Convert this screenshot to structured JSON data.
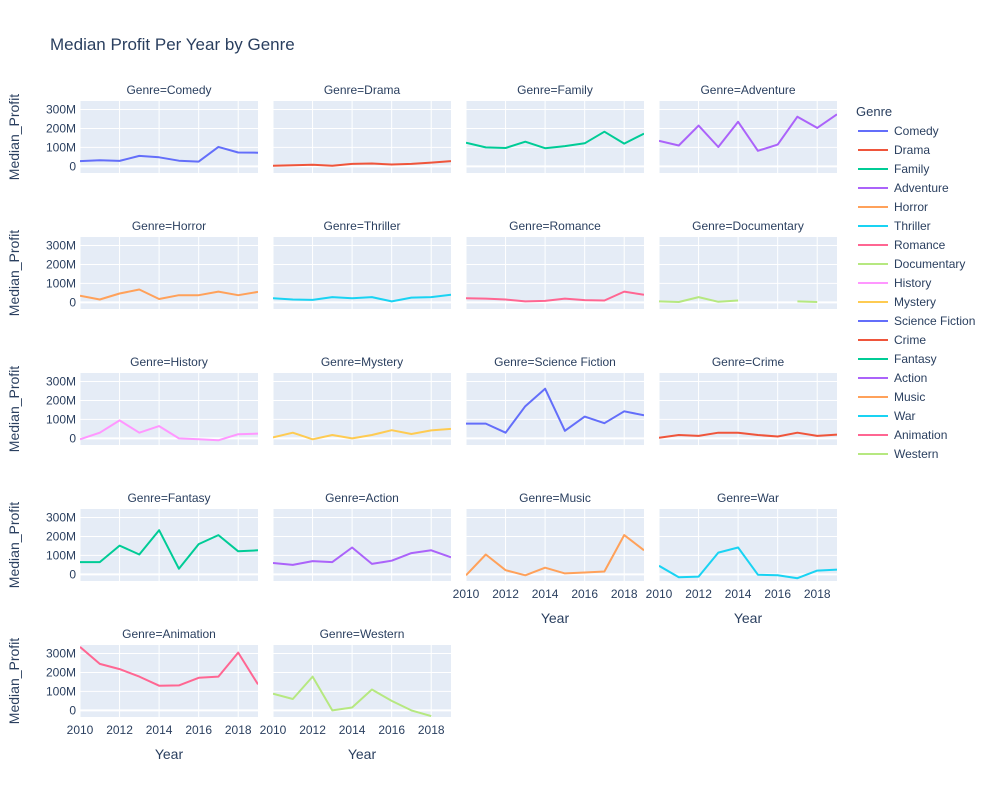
{
  "chart_data": {
    "type": "line",
    "title": "Median Profit Per Year by Genre",
    "xlabel": "Year",
    "ylabel": "Median_Profit",
    "facet_label_prefix": "Genre=",
    "legend_title": "Genre",
    "legend_placement": "right",
    "xlim": [
      2010,
      2019
    ],
    "ylim": [
      -35000000,
      345000000
    ],
    "x_ticks": [
      2010,
      2012,
      2014,
      2016,
      2018
    ],
    "x_tick_labels": [
      "2010",
      "2012",
      "2014",
      "2016",
      "2018"
    ],
    "y_ticks": [
      0,
      100000000,
      200000000,
      300000000
    ],
    "y_tick_labels": [
      "0",
      "100M",
      "200M",
      "300M"
    ],
    "x": [
      2010,
      2011,
      2012,
      2013,
      2014,
      2015,
      2016,
      2017,
      2018,
      2019
    ],
    "grid": true,
    "series": [
      {
        "name": "Comedy",
        "color": "#636efa",
        "values": [
          28000000,
          32000000,
          29000000,
          55000000,
          48000000,
          30000000,
          25000000,
          103000000,
          73000000,
          72000000
        ]
      },
      {
        "name": "Drama",
        "color": "#EF553B",
        "values": [
          3000000,
          6000000,
          9000000,
          3000000,
          13000000,
          15000000,
          10000000,
          13000000,
          20000000,
          28000000
        ]
      },
      {
        "name": "Family",
        "color": "#00cc96",
        "values": [
          125000000,
          100000000,
          97000000,
          130000000,
          96000000,
          107000000,
          122000000,
          183000000,
          120000000,
          173000000
        ]
      },
      {
        "name": "Adventure",
        "color": "#ab63fa",
        "values": [
          135000000,
          110000000,
          215000000,
          102000000,
          235000000,
          82000000,
          115000000,
          262000000,
          203000000,
          275000000
        ]
      },
      {
        "name": "Horror",
        "color": "#FFA15A",
        "values": [
          35000000,
          15000000,
          47000000,
          68000000,
          18000000,
          38000000,
          38000000,
          57000000,
          38000000,
          55000000
        ]
      },
      {
        "name": "Thriller",
        "color": "#19d3f3",
        "values": [
          22000000,
          15000000,
          13000000,
          28000000,
          22000000,
          28000000,
          5000000,
          25000000,
          28000000,
          40000000
        ]
      },
      {
        "name": "Romance",
        "color": "#FF6692",
        "values": [
          22000000,
          20000000,
          15000000,
          5000000,
          8000000,
          20000000,
          12000000,
          10000000,
          57000000,
          40000000
        ]
      },
      {
        "name": "Documentary",
        "color": "#B6E880",
        "values": [
          5000000,
          2000000,
          28000000,
          3000000,
          10000000,
          null,
          null,
          5000000,
          2000000,
          null
        ]
      },
      {
        "name": "History",
        "color": "#FF97FF",
        "values": [
          -5000000,
          30000000,
          95000000,
          30000000,
          65000000,
          0,
          -5000000,
          -10000000,
          22000000,
          25000000
        ]
      },
      {
        "name": "Mystery",
        "color": "#FECB52",
        "values": [
          5000000,
          30000000,
          -5000000,
          18000000,
          0,
          18000000,
          43000000,
          23000000,
          42000000,
          50000000
        ]
      },
      {
        "name": "Science Fiction",
        "color": "#636efa",
        "values": [
          78000000,
          78000000,
          30000000,
          170000000,
          262000000,
          40000000,
          115000000,
          80000000,
          143000000,
          122000000
        ]
      },
      {
        "name": "Crime",
        "color": "#EF553B",
        "values": [
          3000000,
          18000000,
          13000000,
          30000000,
          30000000,
          18000000,
          10000000,
          30000000,
          13000000,
          20000000
        ]
      },
      {
        "name": "Fantasy",
        "color": "#00cc96",
        "values": [
          65000000,
          65000000,
          152000000,
          105000000,
          233000000,
          30000000,
          160000000,
          207000000,
          122000000,
          127000000
        ]
      },
      {
        "name": "Action",
        "color": "#ab63fa",
        "values": [
          60000000,
          50000000,
          70000000,
          65000000,
          142000000,
          55000000,
          72000000,
          112000000,
          127000000,
          90000000
        ]
      },
      {
        "name": "Music",
        "color": "#FFA15A",
        "values": [
          -5000000,
          105000000,
          22000000,
          -5000000,
          35000000,
          5000000,
          10000000,
          15000000,
          207000000,
          127000000
        ]
      },
      {
        "name": "War",
        "color": "#19d3f3",
        "values": [
          45000000,
          -15000000,
          -12000000,
          115000000,
          142000000,
          -2000000,
          -5000000,
          -20000000,
          20000000,
          25000000
        ]
      },
      {
        "name": "Animation",
        "color": "#FF6692",
        "values": [
          335000000,
          245000000,
          218000000,
          178000000,
          130000000,
          132000000,
          172000000,
          178000000,
          305000000,
          137000000
        ]
      },
      {
        "name": "Western",
        "color": "#B6E880",
        "values": [
          88000000,
          60000000,
          178000000,
          0,
          15000000,
          110000000,
          50000000,
          0,
          -30000000,
          null
        ]
      }
    ]
  }
}
